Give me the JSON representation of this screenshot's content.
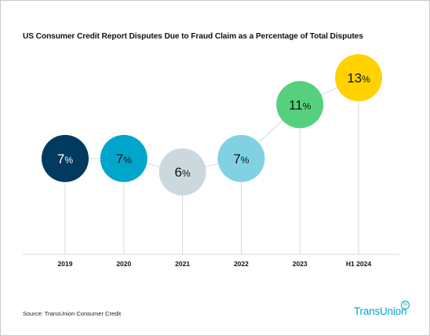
{
  "chart_data": {
    "type": "line",
    "title": "US Consumer Credit Report Disputes Due to Fraud Claim as a Percentage of Total Disputes",
    "categories": [
      "2019",
      "2020",
      "2021",
      "2022",
      "2023",
      "H1 2024"
    ],
    "values": [
      7,
      7,
      6,
      7,
      11,
      13
    ],
    "value_suffix": "%",
    "point_colors": [
      "#003a5e",
      "#00a6ca",
      "#cbd9df",
      "#80d1e3",
      "#55d17d",
      "#ffd200"
    ],
    "label_colors": [
      "#ffffff",
      "#111111",
      "#111111",
      "#111111",
      "#111111",
      "#111111"
    ],
    "ylim": [
      6,
      13
    ],
    "grid": false,
    "legend": "none"
  },
  "source": "Source: TransUnion Consumer Credit",
  "logo": {
    "text": "TransUnion",
    "badge": "tu"
  },
  "colors": {
    "connector": "#d9d9d9",
    "baseline": "#d9d9d9",
    "brand": "#00a6ca"
  }
}
